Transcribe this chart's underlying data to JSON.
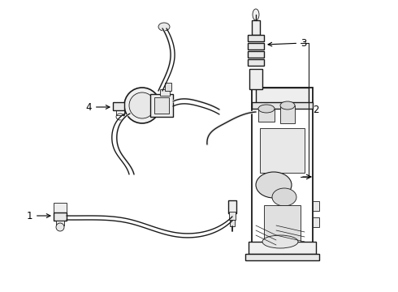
{
  "background_color": "#ffffff",
  "line_color": "#1a1a1a",
  "label_color": "#000000",
  "fig_width": 4.9,
  "fig_height": 3.6,
  "dpi": 100,
  "lw_main": 1.0,
  "lw_detail": 0.6,
  "label_fontsize": 8.5
}
